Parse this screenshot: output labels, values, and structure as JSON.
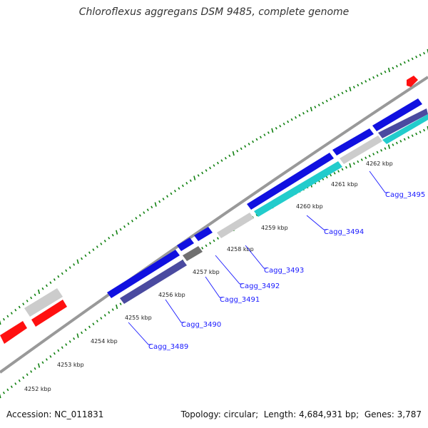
{
  "title": "Chloroflexus aggregans DSM 9485, complete genome",
  "footer": {
    "accession_label": "Accession:",
    "accession": "NC_011831",
    "topology_label": "Topology:",
    "topology": "circular",
    "length_label": "Length:",
    "length": "4,684,931 bp",
    "genes_label": "Genes:",
    "genes": "3,787"
  },
  "colors": {
    "forward_gene": "#1010e0",
    "reverse_gene": "#4a4aa0",
    "rna_gene": "#ff1010",
    "cyan_gene": "#22cccc",
    "grey_gene": "#cccccc",
    "dark_grey_gene": "#707070",
    "backbone": "#888888",
    "tick": "#108010",
    "label": "#1a1aff"
  },
  "axis_ticks": [
    "4252 kbp",
    "4253 kbp",
    "4254 kbp",
    "4255 kbp",
    "4256 kbp",
    "4257 kbp",
    "4258 kbp",
    "4259 kbp",
    "4260 kbp",
    "4261 kbp",
    "4262 kbp"
  ],
  "gene_labels": [
    "Cagg_3489",
    "Cagg_3490",
    "Cagg_3491",
    "Cagg_3492",
    "Cagg_3493",
    "Cagg_3494",
    "Cagg_3495"
  ]
}
